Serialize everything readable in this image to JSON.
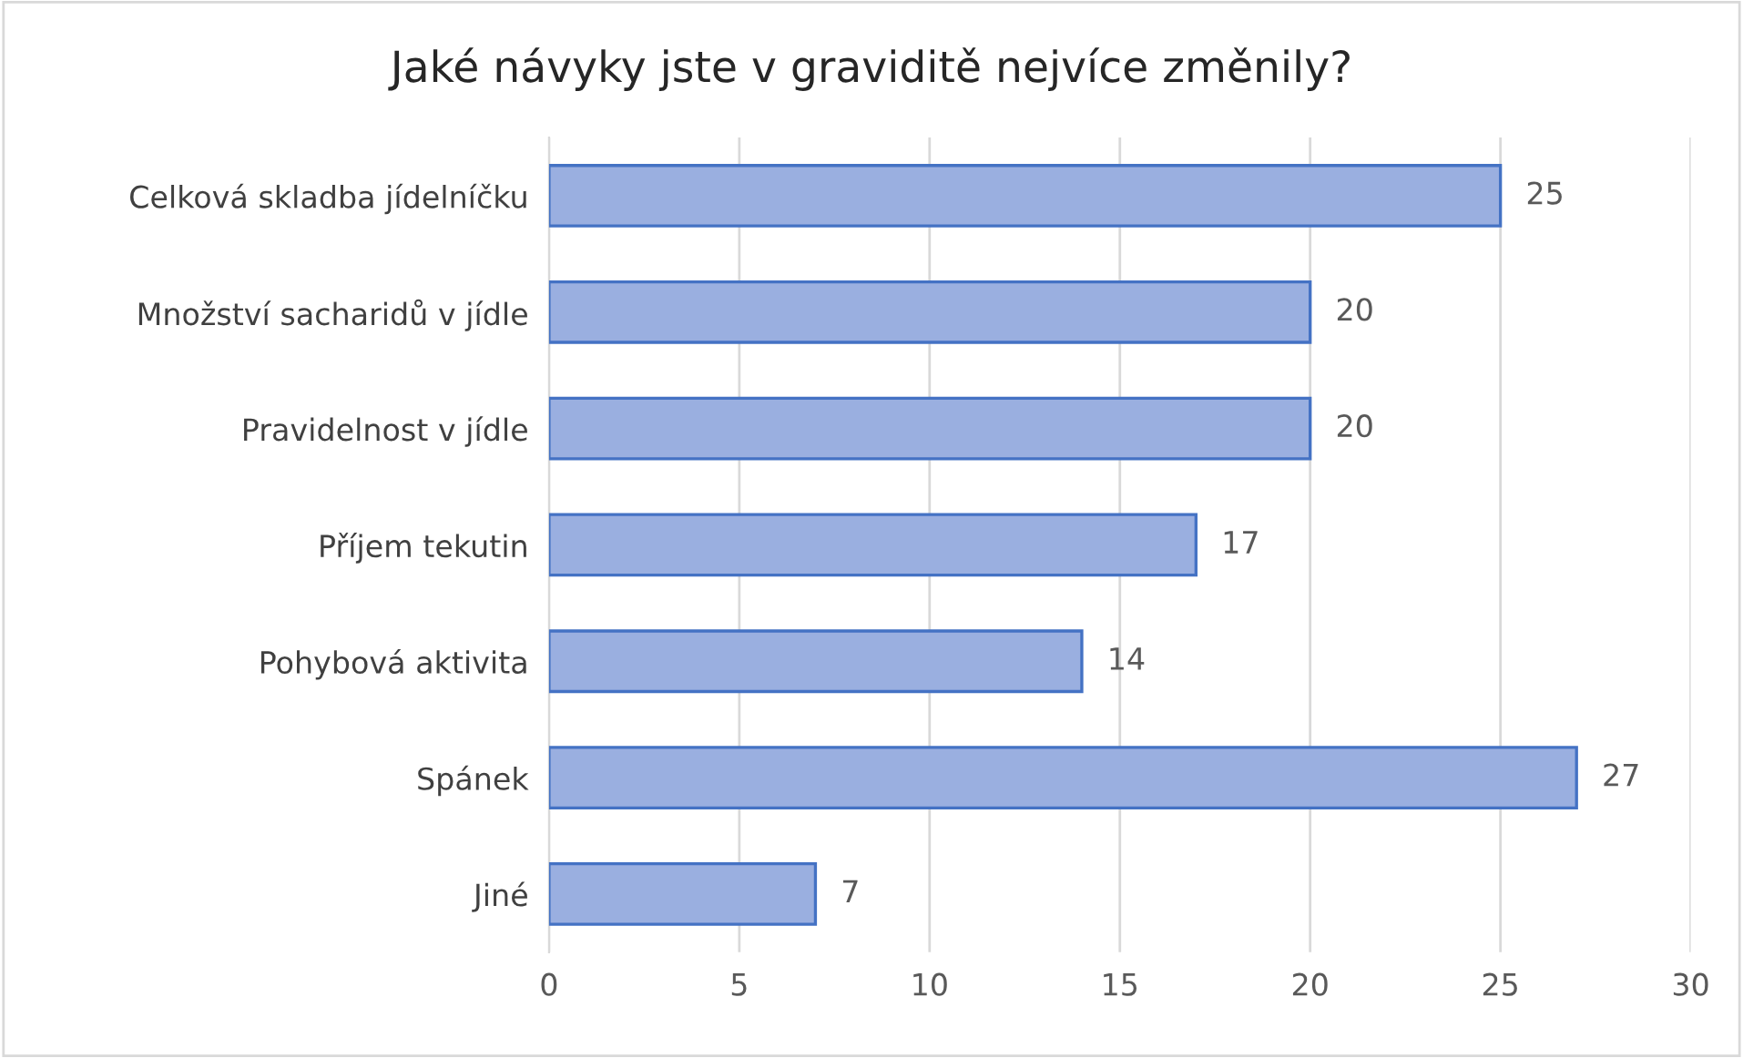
{
  "chart_data": {
    "type": "bar",
    "orientation": "horizontal",
    "title": "Jaké návyky jste v graviditě nejvíce změnily?",
    "categories": [
      "Celková skladba jídelníčku",
      "Množství sacharidů v jídle",
      "Pravidelnost v jídle",
      "Příjem tekutin",
      "Pohybová aktivita",
      "Spánek",
      "Jiné"
    ],
    "values": [
      25,
      20,
      20,
      17,
      14,
      27,
      7
    ],
    "color": "#9aafe0",
    "xlim": [
      0,
      30
    ],
    "xticks": [
      0,
      5,
      10,
      15,
      20,
      25,
      30
    ],
    "grid": "x",
    "data_labels": true
  }
}
